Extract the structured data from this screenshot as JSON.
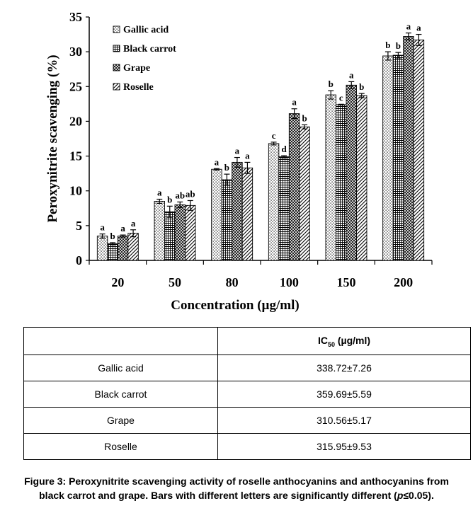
{
  "chart_data": {
    "type": "bar",
    "xlabel": "Concentration (µg/ml)",
    "ylabel": "Peroxynitrite scavenging (%)",
    "ylim": [
      0,
      35
    ],
    "yticks": [
      0,
      5,
      10,
      15,
      20,
      25,
      30,
      35
    ],
    "categories": [
      "20",
      "50",
      "80",
      "100",
      "150",
      "200"
    ],
    "legend_position": "top-left",
    "grid": false,
    "series": [
      {
        "name": "Gallic acid",
        "pattern": "dots",
        "values": [
          3.5,
          8.5,
          13.1,
          16.8,
          23.8,
          29.4
        ],
        "errors": [
          0.3,
          0.3,
          0.1,
          0.2,
          0.6,
          0.6
        ],
        "letters": [
          "a",
          "a",
          "a",
          "c",
          "b",
          "b"
        ]
      },
      {
        "name": "Black carrot",
        "pattern": "grid",
        "values": [
          2.4,
          7.0,
          11.6,
          14.9,
          22.4,
          29.5
        ],
        "errors": [
          0.15,
          0.8,
          0.8,
          0.15,
          0.05,
          0.4
        ],
        "letters": [
          "b",
          "b",
          "b",
          "d",
          "c",
          "b"
        ]
      },
      {
        "name": "Grape",
        "pattern": "crosshatch",
        "values": [
          3.5,
          8.0,
          14.1,
          21.1,
          25.2,
          32.2
        ],
        "errors": [
          0.15,
          0.4,
          0.7,
          0.7,
          0.5,
          0.5
        ],
        "letters": [
          "a",
          "ab",
          "a",
          "a",
          "a",
          "a"
        ]
      },
      {
        "name": "Roselle",
        "pattern": "diagonal",
        "values": [
          3.9,
          7.9,
          13.3,
          19.2,
          23.7,
          31.7
        ],
        "errors": [
          0.5,
          0.7,
          0.8,
          0.3,
          0.3,
          0.8
        ],
        "letters": [
          "a",
          "ab",
          "a",
          "b",
          "b",
          "a"
        ]
      }
    ]
  },
  "table": {
    "header_blank": "",
    "header_base": "IC",
    "header_sub": "50",
    "header_unit": " (µg/ml)",
    "rows": [
      {
        "sample": "Gallic acid",
        "ic50": "338.72±7.26"
      },
      {
        "sample": "Black carrot",
        "ic50": "359.69±5.59"
      },
      {
        "sample": "Grape",
        "ic50": "310.56±5.17"
      },
      {
        "sample": "Roselle",
        "ic50": "315.95±9.53"
      }
    ]
  },
  "caption": {
    "line1": "Figure 3: Peroxynitrite scavenging activity of roselle anthocyanins and anthocyanins from",
    "line2_pre": "black carrot and grape. Bars with different letters are significantly different (",
    "line2_p": "p",
    "line2_post": "≤0.05)."
  }
}
